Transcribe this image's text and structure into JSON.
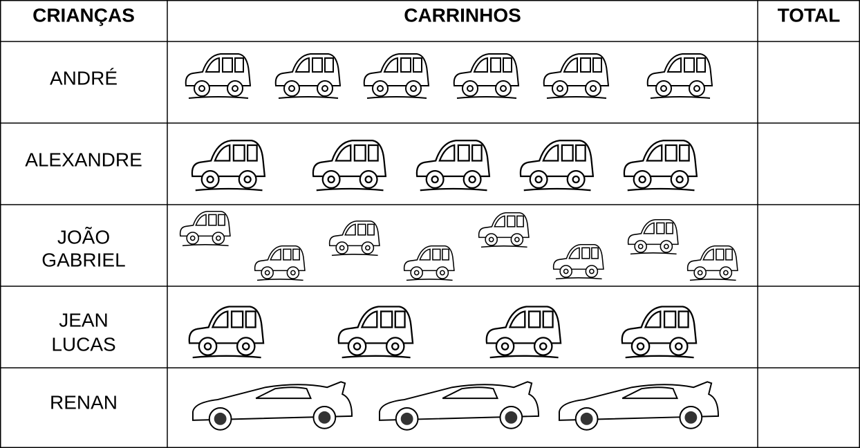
{
  "table": {
    "headers": [
      "CRIANÇAS",
      "CARRINHOS",
      "TOTAL"
    ],
    "names": [
      [
        "ANDRÉ"
      ],
      [
        "ALEXANDRE"
      ],
      [
        "JOÃO",
        "GABRIEL"
      ],
      [
        "JEAN",
        "LUCAS"
      ],
      [
        "RENAN"
      ]
    ]
  }
}
